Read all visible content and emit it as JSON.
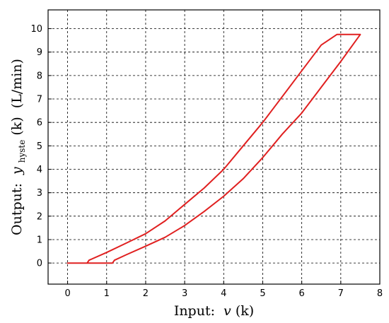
{
  "chart_data": {
    "type": "line",
    "xlim": [
      -0.5,
      8
    ],
    "ylim": [
      -0.9,
      10.8
    ],
    "xticks": [
      0,
      1,
      2,
      3,
      4,
      5,
      6,
      7,
      8
    ],
    "yticks": [
      0,
      1,
      2,
      3,
      4,
      5,
      6,
      7,
      8,
      9,
      10
    ],
    "grid": true,
    "xlabel": {
      "prefix": "Input:",
      "var": "v",
      "arg": "(k)"
    },
    "ylabel": {
      "prefix": "Output:",
      "var": "y",
      "sub": "hyste",
      "arg": "(k)",
      "unit": "(L/min)"
    },
    "series": [
      {
        "color": "#e02020",
        "x": [
          0,
          0.5,
          0.55,
          1.0,
          1.5,
          2.0,
          2.5,
          3.0,
          3.5,
          4.0,
          4.5,
          5.0,
          5.5,
          6.0,
          6.5,
          6.9,
          7.5,
          7.0,
          6.5,
          6.0,
          5.5,
          5.0,
          4.5,
          4.0,
          3.5,
          3.0,
          2.5,
          2.0,
          1.5,
          1.2,
          1.15,
          0.5,
          0
        ],
        "y": [
          0,
          0,
          0.12,
          0.45,
          0.85,
          1.25,
          1.8,
          2.5,
          3.2,
          4.0,
          5.0,
          6.0,
          7.1,
          8.2,
          9.3,
          9.75,
          9.75,
          8.6,
          7.5,
          6.4,
          5.5,
          4.5,
          3.6,
          2.85,
          2.2,
          1.6,
          1.1,
          0.72,
          0.35,
          0.12,
          0,
          0,
          0
        ]
      }
    ]
  }
}
